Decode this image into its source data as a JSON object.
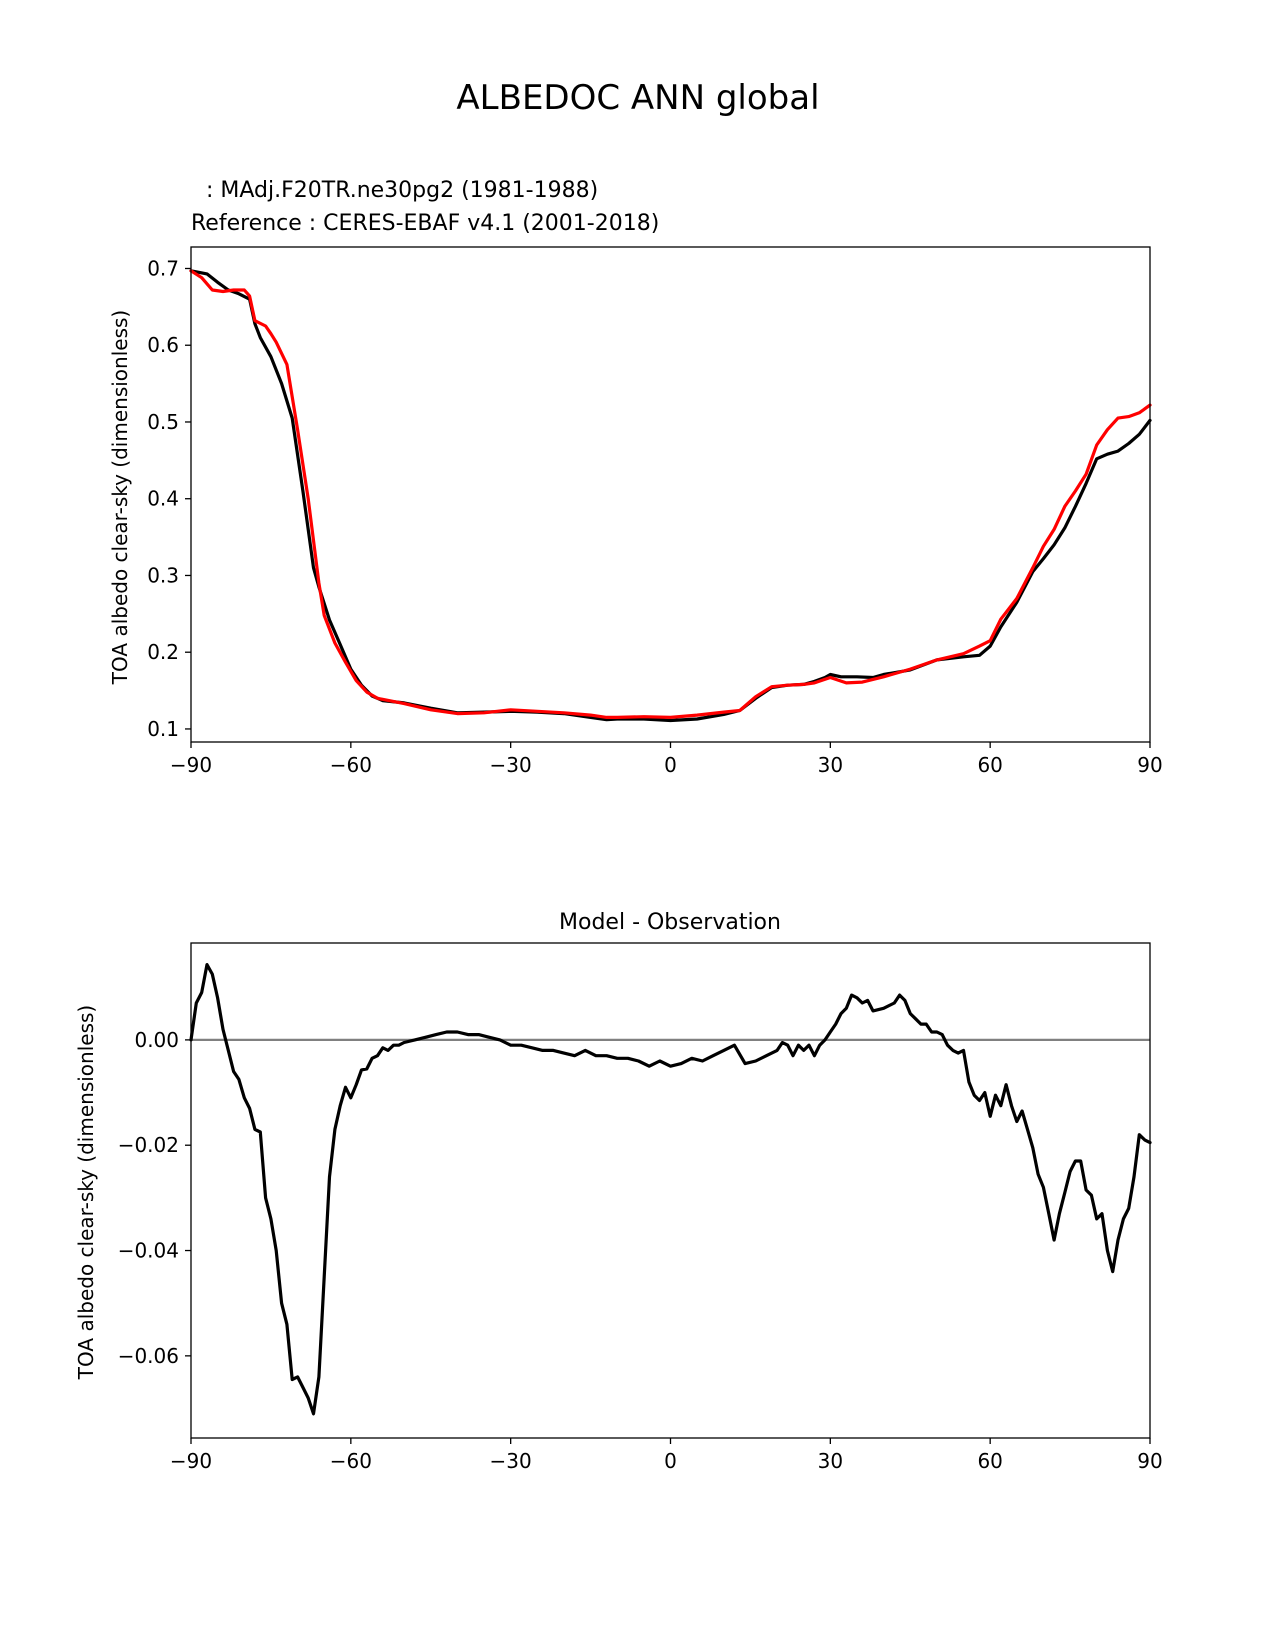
{
  "figure": {
    "suptitle": "ALBEDOC ANN global"
  },
  "chart_data": [
    {
      "type": "line",
      "title_test": ": MAdj.F20TR.ne30pg2 (1981-1988)",
      "title_ref": "Reference : CERES-EBAF v4.1 (2001-2018)",
      "xlabel": "",
      "ylabel": "TOA albedo clear-sky (dimensionless)",
      "xlim": [
        -90,
        90
      ],
      "ylim": [
        0.083,
        0.728
      ],
      "xticks": [
        -90,
        -60,
        -30,
        0,
        30,
        60,
        90
      ],
      "xtick_labels": [
        "−90",
        "−60",
        "−30",
        "0",
        "30",
        "60",
        "90"
      ],
      "yticks": [
        0.1,
        0.2,
        0.3,
        0.4,
        0.5,
        0.6,
        0.7
      ],
      "ytick_labels": [
        "0.1",
        "0.2",
        "0.3",
        "0.4",
        "0.5",
        "0.6",
        "0.7"
      ],
      "grid": false,
      "series": [
        {
          "color": "#000000",
          "x": [
            -90,
            -87,
            -85,
            -83,
            -81,
            -79,
            -78,
            -77,
            -75,
            -73,
            -71,
            -69,
            -67,
            -66,
            -64,
            -62,
            -60,
            -58,
            -56,
            -54,
            -50,
            -45,
            -40,
            -35,
            -30,
            -25,
            -20,
            -15,
            -12,
            -10,
            -5,
            0,
            5,
            10,
            13,
            16,
            19,
            22,
            25,
            27,
            29,
            30,
            32,
            35,
            38,
            40,
            45,
            50,
            55,
            58,
            60,
            62,
            65,
            68,
            70,
            72,
            74,
            76,
            78,
            80,
            82,
            84,
            86,
            88,
            90
          ],
          "y": [
            0.697,
            0.693,
            0.682,
            0.672,
            0.667,
            0.66,
            0.628,
            0.61,
            0.585,
            0.55,
            0.505,
            0.41,
            0.31,
            0.285,
            0.242,
            0.21,
            0.178,
            0.157,
            0.143,
            0.137,
            0.134,
            0.127,
            0.121,
            0.122,
            0.123,
            0.122,
            0.12,
            0.115,
            0.112,
            0.113,
            0.113,
            0.111,
            0.113,
            0.119,
            0.124,
            0.14,
            0.154,
            0.157,
            0.158,
            0.162,
            0.167,
            0.171,
            0.168,
            0.168,
            0.167,
            0.171,
            0.177,
            0.19,
            0.194,
            0.196,
            0.208,
            0.233,
            0.265,
            0.305,
            0.322,
            0.34,
            0.362,
            0.39,
            0.42,
            0.452,
            0.458,
            0.462,
            0.472,
            0.484,
            0.502
          ]
        },
        {
          "color": "#ff0000",
          "x": [
            -90,
            -88,
            -86,
            -84,
            -82,
            -80,
            -79,
            -78,
            -76,
            -75,
            -74,
            -72,
            -70,
            -68,
            -66,
            -65,
            -63,
            -61,
            -59,
            -57,
            -55,
            -50,
            -45,
            -40,
            -35,
            -30,
            -25,
            -20,
            -15,
            -12,
            -10,
            -5,
            0,
            5,
            10,
            13,
            16,
            19,
            22,
            25,
            27,
            30,
            33,
            36,
            40,
            45,
            50,
            55,
            58,
            60,
            62,
            65,
            68,
            70,
            72,
            74,
            76,
            78,
            80,
            82,
            84,
            86,
            88,
            90
          ],
          "y": [
            0.697,
            0.688,
            0.672,
            0.67,
            0.672,
            0.672,
            0.664,
            0.632,
            0.625,
            0.615,
            0.604,
            0.575,
            0.49,
            0.4,
            0.29,
            0.248,
            0.212,
            0.187,
            0.163,
            0.148,
            0.14,
            0.133,
            0.125,
            0.12,
            0.121,
            0.125,
            0.123,
            0.121,
            0.118,
            0.115,
            0.115,
            0.116,
            0.115,
            0.118,
            0.122,
            0.124,
            0.142,
            0.155,
            0.157,
            0.158,
            0.16,
            0.167,
            0.16,
            0.161,
            0.168,
            0.178,
            0.19,
            0.198,
            0.208,
            0.215,
            0.243,
            0.27,
            0.31,
            0.338,
            0.36,
            0.39,
            0.41,
            0.432,
            0.47,
            0.49,
            0.505,
            0.507,
            0.512,
            0.522
          ]
        }
      ]
    },
    {
      "type": "line",
      "title": "Model - Observation",
      "xlabel": "",
      "ylabel": "TOA albedo clear-sky (dimensionless)",
      "xlim": [
        -90,
        90
      ],
      "ylim": [
        -0.0756,
        0.0184
      ],
      "xticks": [
        -90,
        -60,
        -30,
        0,
        30,
        60,
        90
      ],
      "xtick_labels": [
        "−90",
        "−60",
        "−30",
        "0",
        "30",
        "60",
        "90"
      ],
      "yticks": [
        0.0,
        -0.02,
        -0.04,
        -0.06
      ],
      "ytick_labels": [
        "0.00",
        "−0.02",
        "−0.04",
        "−0.06"
      ],
      "grid": false,
      "zero_line_color": "#808080",
      "series": [
        {
          "color": "#000000",
          "x": [
            -90,
            -89,
            -88,
            -87,
            -86,
            -85,
            -84,
            -83,
            -82,
            -81,
            -80,
            -79,
            -78,
            -77,
            -76,
            -75,
            -74,
            -73,
            -72,
            -71,
            -70,
            -69,
            -68,
            -67,
            -66,
            -65,
            -64,
            -63,
            -62,
            -61,
            -60,
            -59,
            -58,
            -57,
            -56,
            -55,
            -54,
            -53,
            -52,
            -51,
            -50,
            -48,
            -46,
            -44,
            -42,
            -40,
            -38,
            -36,
            -34,
            -32,
            -30,
            -28,
            -26,
            -24,
            -22,
            -20,
            -18,
            -16,
            -14,
            -12,
            -10,
            -8,
            -6,
            -4,
            -2,
            0,
            2,
            4,
            6,
            8,
            10,
            12,
            14,
            16,
            18,
            20,
            21,
            22,
            23,
            24,
            25,
            26,
            27,
            28,
            29,
            30,
            31,
            32,
            33,
            34,
            35,
            36,
            37,
            38,
            40,
            42,
            43,
            44,
            45,
            46,
            47,
            48,
            49,
            50,
            51,
            52,
            53,
            54,
            55,
            56,
            57,
            58,
            59,
            60,
            61,
            62,
            63,
            64,
            65,
            66,
            67,
            68,
            69,
            70,
            71,
            72,
            73,
            74,
            75,
            76,
            77,
            78,
            79,
            80,
            81,
            82,
            83,
            84,
            85,
            86,
            87,
            88,
            89,
            90
          ],
          "y": [
            0.0,
            0.007,
            0.009,
            0.0143,
            0.0125,
            0.008,
            0.002,
            -0.002,
            -0.006,
            -0.0075,
            -0.011,
            -0.013,
            -0.017,
            -0.0175,
            -0.03,
            -0.034,
            -0.04,
            -0.05,
            -0.054,
            -0.0645,
            -0.064,
            -0.066,
            -0.068,
            -0.071,
            -0.064,
            -0.045,
            -0.026,
            -0.017,
            -0.0125,
            -0.009,
            -0.011,
            -0.0085,
            -0.0057,
            -0.0055,
            -0.0035,
            -0.003,
            -0.0015,
            -0.002,
            -0.001,
            -0.001,
            -0.0005,
            0.0,
            0.0005,
            0.001,
            0.0015,
            0.0015,
            0.001,
            0.001,
            0.0005,
            0.0,
            -0.001,
            -0.001,
            -0.0015,
            -0.002,
            -0.002,
            -0.0025,
            -0.003,
            -0.002,
            -0.003,
            -0.003,
            -0.0035,
            -0.0035,
            -0.004,
            -0.005,
            -0.004,
            -0.005,
            -0.0045,
            -0.0035,
            -0.004,
            -0.003,
            -0.002,
            -0.001,
            -0.0045,
            -0.004,
            -0.003,
            -0.002,
            -0.0005,
            -0.001,
            -0.003,
            -0.001,
            -0.002,
            -0.001,
            -0.003,
            -0.001,
            0.0,
            0.0015,
            0.003,
            0.005,
            0.006,
            0.0085,
            0.008,
            0.007,
            0.0075,
            0.0055,
            0.006,
            0.007,
            0.0085,
            0.0075,
            0.005,
            0.004,
            0.003,
            0.003,
            0.0015,
            0.0015,
            0.001,
            -0.001,
            -0.002,
            -0.0025,
            -0.002,
            -0.008,
            -0.0105,
            -0.0115,
            -0.01,
            -0.0145,
            -0.0105,
            -0.0125,
            -0.0085,
            -0.0125,
            -0.0155,
            -0.0135,
            -0.017,
            -0.0205,
            -0.0255,
            -0.028,
            -0.033,
            -0.038,
            -0.033,
            -0.029,
            -0.025,
            -0.023,
            -0.023,
            -0.0285,
            -0.0295,
            -0.034,
            -0.033,
            -0.04,
            -0.044,
            -0.038,
            -0.034,
            -0.032,
            -0.026,
            -0.018,
            -0.019,
            -0.0195
          ]
        }
      ]
    }
  ]
}
